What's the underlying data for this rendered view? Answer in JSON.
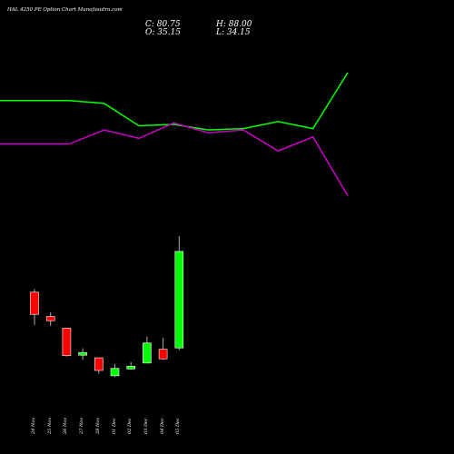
{
  "chart_data": {
    "type": "candlestick",
    "title": "HAL 4250 PE Option Chart Munafasutra.com",
    "ohlc_labels": {
      "close": "C: 80.75",
      "high": "H: 88.00",
      "open": "O: 35.15",
      "low": "L: 34.15"
    },
    "categories": [
      "24 Nov",
      "25 Nov",
      "26 Nov",
      "27 Nov",
      "28 Nov",
      "01 Dec",
      "02 Dec",
      "03 Dec",
      "04 Dec",
      "05 Dec"
    ],
    "candles": [
      {
        "date": "24 Nov",
        "open": 61.5,
        "high": 63.0,
        "low": 46.0,
        "close": 51.0
      },
      {
        "date": "25 Nov",
        "open": 50.0,
        "high": 52.0,
        "low": 45.5,
        "close": 48.0
      },
      {
        "date": "26 Nov",
        "open": 44.5,
        "high": 44.5,
        "low": 31.0,
        "close": 31.5
      },
      {
        "date": "27 Nov",
        "open": 32.0,
        "high": 35.0,
        "low": 29.5,
        "close": 33.0
      },
      {
        "date": "28 Nov",
        "open": 30.5,
        "high": 30.5,
        "low": 23.0,
        "close": 24.5
      },
      {
        "date": "01 Dec",
        "open": 22.0,
        "high": 27.5,
        "low": 21.5,
        "close": 25.5
      },
      {
        "date": "02 Dec",
        "open": 25.5,
        "high": 28.5,
        "low": 25.0,
        "close": 26.5
      },
      {
        "date": "03 Dec",
        "open": 28.0,
        "high": 40.5,
        "low": 28.0,
        "close": 37.5
      },
      {
        "date": "04 Dec",
        "open": 34.5,
        "high": 40.0,
        "low": 29.5,
        "close": 30.0
      },
      {
        "date": "05 Dec",
        "open": 35.15,
        "high": 88.0,
        "low": 34.15,
        "close": 80.75
      }
    ],
    "lines": [
      {
        "color": "#00ff00",
        "values": [
          80,
          80,
          78,
          62,
          63,
          59,
          60,
          65,
          60,
          100
        ]
      },
      {
        "color": "#cc00cc",
        "values": [
          49,
          49,
          59,
          53,
          64,
          57,
          59,
          44,
          54,
          12
        ]
      }
    ],
    "colors": {
      "up": "#00ff00",
      "down": "#ff0000",
      "wick": "#aaaaaa",
      "background": "#000000"
    }
  }
}
